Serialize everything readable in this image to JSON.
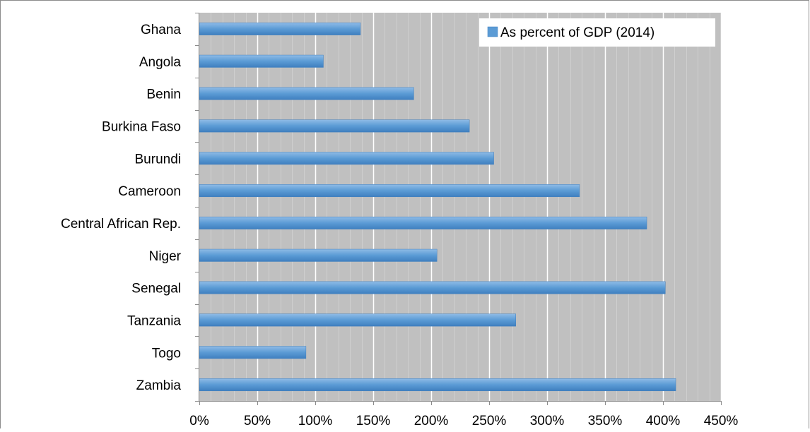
{
  "chart_data": {
    "type": "bar",
    "orientation": "horizontal",
    "categories": [
      "Ghana",
      "Angola",
      "Benin",
      "Burkina Faso",
      "Burundi",
      "Cameroon",
      "Central African Rep.",
      "Niger",
      "Senegal",
      "Tanzania",
      "Togo",
      "Zambia"
    ],
    "series": [
      {
        "name": "As percent of GDP (2014)",
        "values": [
          139,
          107,
          185,
          233,
          254,
          328,
          386,
          205,
          402,
          273,
          92,
          411
        ]
      }
    ],
    "xlim": [
      0,
      450
    ],
    "x_ticks": [
      "0%",
      "50%",
      "100%",
      "150%",
      "200%",
      "250%",
      "300%",
      "350%",
      "400%",
      "450%"
    ],
    "grid": true,
    "legend_position": "top-right",
    "colors": {
      "bar": "#5b9bd5",
      "bar_dark": "#3f7fbf",
      "bar_light": "#8fbbe6",
      "plot_background": "#c0c0c0",
      "gridline": "#ffffff",
      "frame": "#8c8c8c"
    }
  }
}
